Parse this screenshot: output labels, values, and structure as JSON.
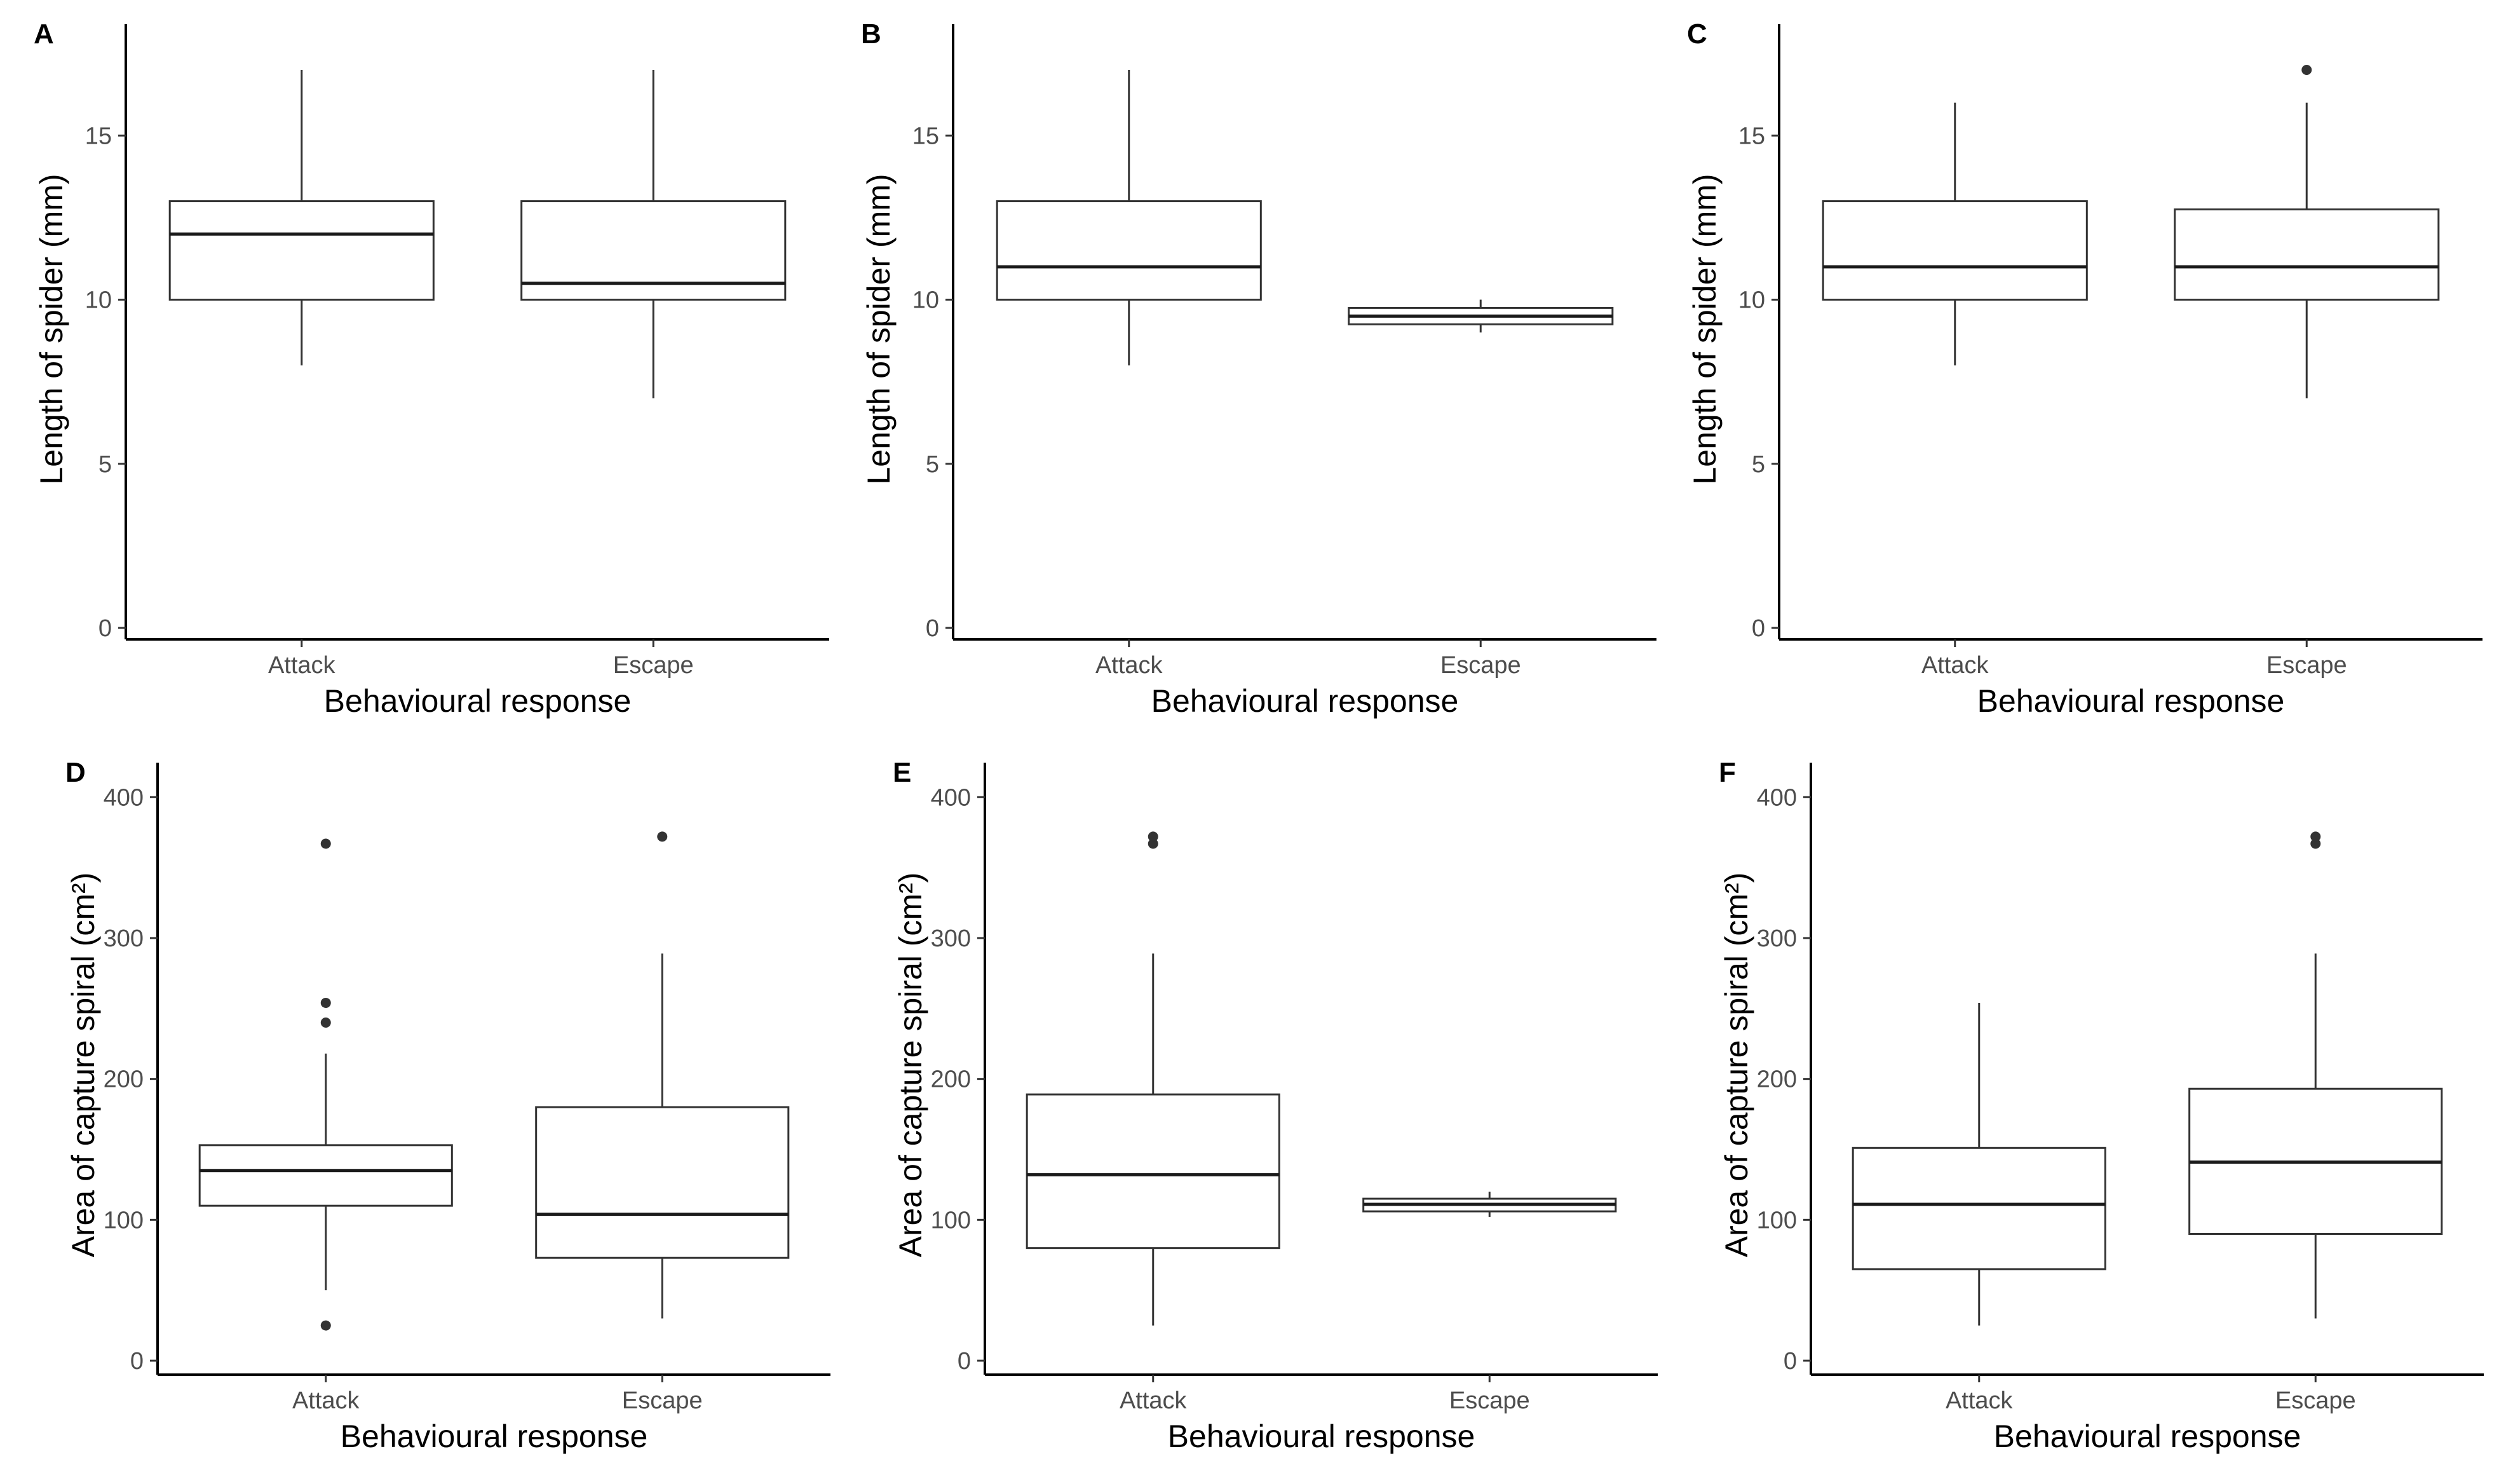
{
  "figure": {
    "background": "#ffffff",
    "line_color": "#333333",
    "median_color": "#1a1a1a"
  },
  "chart_data": [
    {
      "type": "boxplot",
      "panel": "A",
      "xlabel": "Behavioural response",
      "ylabel": "Length of spider (mm)",
      "ylim": [
        0,
        18.2
      ],
      "yticks": [
        0,
        5,
        10,
        15
      ],
      "categories": [
        "Attack",
        "Escape"
      ],
      "boxes": [
        {
          "category": "Attack",
          "whisker_low": 8,
          "q1": 10,
          "median": 12,
          "q3": 13,
          "whisker_high": 17,
          "outliers": []
        },
        {
          "category": "Escape",
          "whisker_low": 7,
          "q1": 10,
          "median": 10.5,
          "q3": 13,
          "whisker_high": 17,
          "outliers": []
        }
      ]
    },
    {
      "type": "boxplot",
      "panel": "B",
      "xlabel": "Behavioural response",
      "ylabel": "Length of spider (mm)",
      "ylim": [
        0,
        18.2
      ],
      "yticks": [
        0,
        5,
        10,
        15
      ],
      "categories": [
        "Attack",
        "Escape"
      ],
      "boxes": [
        {
          "category": "Attack",
          "whisker_low": 8,
          "q1": 10,
          "median": 11,
          "q3": 13,
          "whisker_high": 17,
          "outliers": []
        },
        {
          "category": "Escape",
          "whisker_low": 9,
          "q1": 9.25,
          "median": 9.5,
          "q3": 9.75,
          "whisker_high": 10,
          "outliers": []
        }
      ]
    },
    {
      "type": "boxplot",
      "panel": "C",
      "xlabel": "Behavioural response",
      "ylabel": "Length of spider (mm)",
      "ylim": [
        0,
        18.2
      ],
      "yticks": [
        0,
        5,
        10,
        15
      ],
      "categories": [
        "Attack",
        "Escape"
      ],
      "boxes": [
        {
          "category": "Attack",
          "whisker_low": 8,
          "q1": 10,
          "median": 11,
          "q3": 13,
          "whisker_high": 16,
          "outliers": []
        },
        {
          "category": "Escape",
          "whisker_low": 7,
          "q1": 10,
          "median": 11,
          "q3": 12.75,
          "whisker_high": 16,
          "outliers": [
            17
          ]
        }
      ]
    },
    {
      "type": "boxplot",
      "panel": "D",
      "xlabel": "Behavioural response",
      "ylabel": "Area of capture spiral (cm²)",
      "ylim": [
        0,
        420
      ],
      "yticks": [
        0,
        100,
        200,
        300,
        400
      ],
      "categories": [
        "Attack",
        "Escape"
      ],
      "boxes": [
        {
          "category": "Attack",
          "whisker_low": 50,
          "q1": 110,
          "median": 135,
          "q3": 153,
          "whisker_high": 218,
          "outliers": [
            25,
            240,
            254,
            367
          ]
        },
        {
          "category": "Escape",
          "whisker_low": 30,
          "q1": 73,
          "median": 104,
          "q3": 180,
          "whisker_high": 289,
          "outliers": [
            372
          ]
        }
      ]
    },
    {
      "type": "boxplot",
      "panel": "E",
      "xlabel": "Behavioural response",
      "ylabel": "Area of capture spiral (cm²)",
      "ylim": [
        0,
        420
      ],
      "yticks": [
        0,
        100,
        200,
        300,
        400
      ],
      "categories": [
        "Attack",
        "Escape"
      ],
      "boxes": [
        {
          "category": "Attack",
          "whisker_low": 25,
          "q1": 80,
          "median": 132,
          "q3": 189,
          "whisker_high": 289,
          "outliers": [
            367,
            372
          ]
        },
        {
          "category": "Escape",
          "whisker_low": 102,
          "q1": 106,
          "median": 111,
          "q3": 115,
          "whisker_high": 120,
          "outliers": []
        }
      ]
    },
    {
      "type": "boxplot",
      "panel": "F",
      "xlabel": "Behavioural response",
      "ylabel": "Area of capture spiral (cm²)",
      "ylim": [
        0,
        420
      ],
      "yticks": [
        0,
        100,
        200,
        300,
        400
      ],
      "categories": [
        "Attack",
        "Escape"
      ],
      "boxes": [
        {
          "category": "Attack",
          "whisker_low": 25,
          "q1": 65,
          "median": 111,
          "q3": 151,
          "whisker_high": 254,
          "outliers": []
        },
        {
          "category": "Escape",
          "whisker_low": 30,
          "q1": 90,
          "median": 141,
          "q3": 193,
          "whisker_high": 289,
          "outliers": [
            367,
            372
          ]
        }
      ]
    }
  ]
}
